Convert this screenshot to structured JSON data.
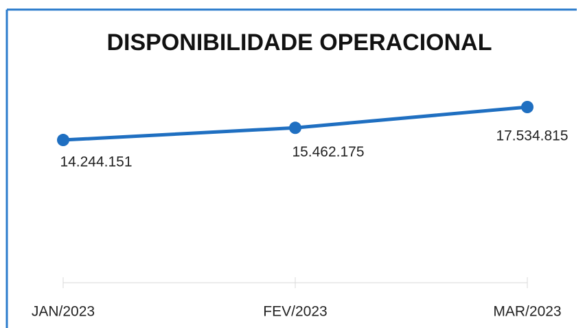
{
  "chart_data": {
    "type": "line",
    "title": "DISPONIBILIDADE OPERACIONAL",
    "categories": [
      "JAN/2023",
      "FEV/2023",
      "MAR/2023"
    ],
    "series": [
      {
        "color": "#1f6fc1",
        "values": [
          14244151,
          15462175,
          17534815
        ],
        "value_labels": [
          "14.244.151",
          "15.462.175",
          "17.534.815"
        ]
      }
    ]
  }
}
